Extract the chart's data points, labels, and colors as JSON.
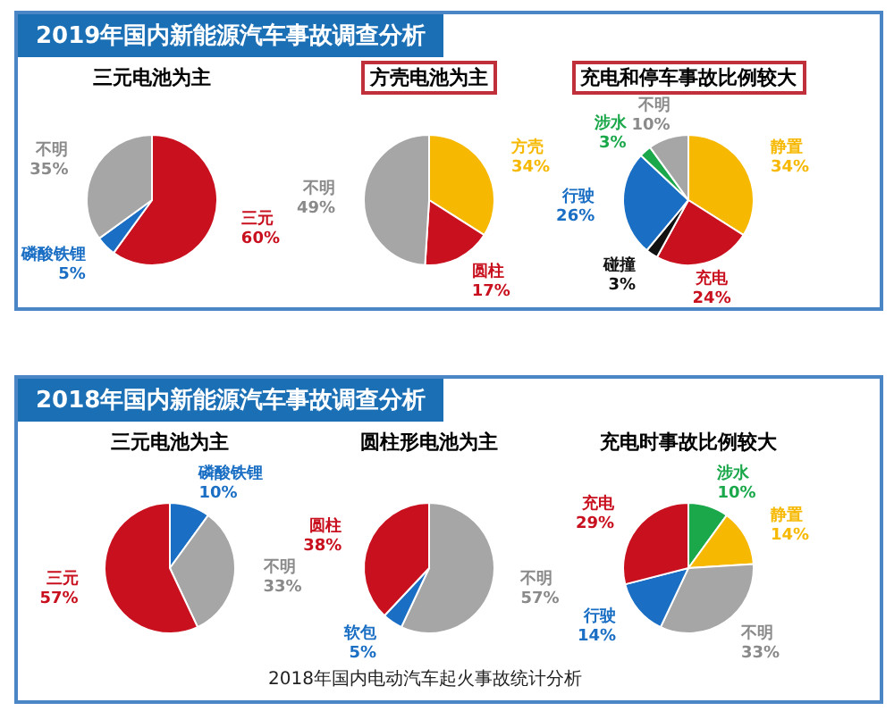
{
  "chart_data": [
    {
      "type": "pie",
      "title": "三元电池为主",
      "annotations": [
        "2019年国内新能源汽车事故调查分析"
      ],
      "categories": [
        "三元",
        "磷酸铁锂",
        "不明"
      ],
      "values": [
        60,
        5,
        35
      ],
      "value_labels": [
        "60%",
        "5%",
        "35%"
      ],
      "colors": [
        "#c8101e",
        "#1a6fc4",
        "#a6a6a6"
      ]
    },
    {
      "type": "pie",
      "title": "方壳电池为主",
      "categories": [
        "方壳",
        "圆柱",
        "不明"
      ],
      "values": [
        34,
        17,
        49
      ],
      "value_labels": [
        "34%",
        "17%",
        "49%"
      ],
      "colors": [
        "#f6b800",
        "#c8101e",
        "#a6a6a6"
      ]
    },
    {
      "type": "pie",
      "title": "充电和停车事故比例较大",
      "categories": [
        "静置",
        "充电",
        "碰撞",
        "行驶",
        "涉水",
        "不明"
      ],
      "values": [
        34,
        24,
        3,
        26,
        3,
        10
      ],
      "value_labels": [
        "34%",
        "24%",
        "3%",
        "26%",
        "3%",
        "10%"
      ],
      "colors": [
        "#f6b800",
        "#c8101e",
        "#111111",
        "#1a6fc4",
        "#1aa84a",
        "#a6a6a6"
      ]
    },
    {
      "type": "pie",
      "title": "三元电池为主",
      "annotations": [
        "2018年国内新能源汽车事故调查分析"
      ],
      "categories": [
        "磷酸铁锂",
        "不明",
        "三元"
      ],
      "values": [
        10,
        33,
        57
      ],
      "value_labels": [
        "10%",
        "33%",
        "57%"
      ],
      "colors": [
        "#1a6fc4",
        "#a6a6a6",
        "#c8101e"
      ]
    },
    {
      "type": "pie",
      "title": "圆柱形电池为主",
      "annotations": [
        "2018年国内电动汽车起火事故统计分析"
      ],
      "categories": [
        "不明",
        "软包",
        "圆柱"
      ],
      "values": [
        57,
        5,
        38
      ],
      "value_labels": [
        "57%",
        "5%",
        "38%"
      ],
      "colors": [
        "#a6a6a6",
        "#1a6fc4",
        "#c8101e"
      ]
    },
    {
      "type": "pie",
      "title": "充电时事故比例较大",
      "categories": [
        "涉水",
        "静置",
        "不明",
        "行驶",
        "充电"
      ],
      "values": [
        10,
        14,
        33,
        14,
        29
      ],
      "value_labels": [
        "10%",
        "14%",
        "33%",
        "14%",
        "29%"
      ],
      "colors": [
        "#1aa84a",
        "#f6b800",
        "#a6a6a6",
        "#1a6fc4",
        "#c8101e"
      ]
    }
  ]
}
